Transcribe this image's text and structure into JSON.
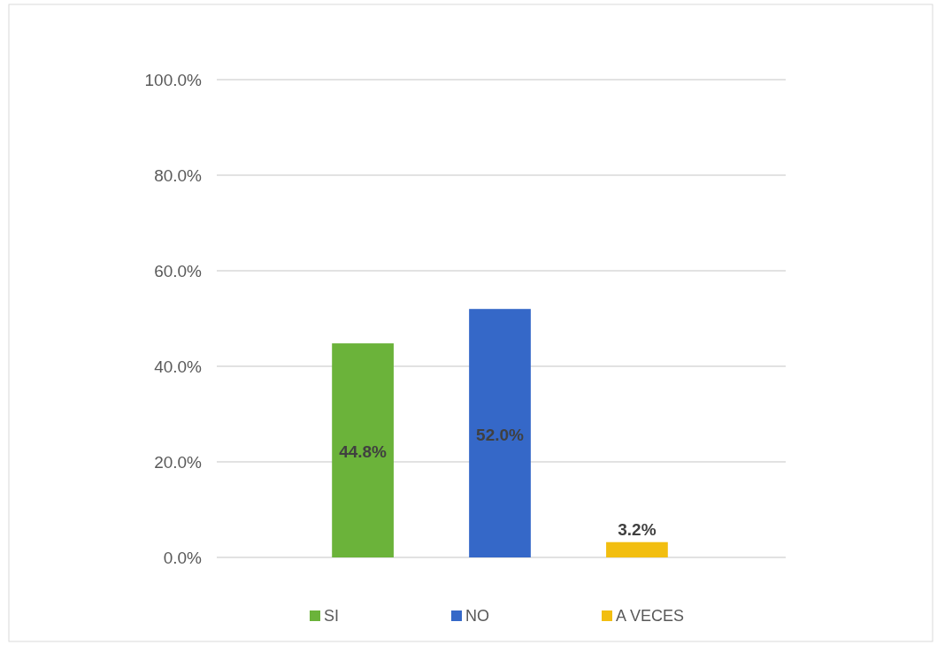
{
  "chart_data": {
    "type": "bar",
    "categories": [
      null,
      null,
      null
    ],
    "series": [
      {
        "name": "SI",
        "color": "#6bb33a",
        "values": [
          44.8,
          null,
          null
        ],
        "value_labels": [
          "44.8%",
          null,
          null
        ]
      },
      {
        "name": "NO",
        "color": "#3568c8",
        "values": [
          null,
          52.0,
          null
        ],
        "value_labels": [
          null,
          "52.0%",
          null
        ]
      },
      {
        "name": "A VECES",
        "color": "#f2be10",
        "values": [
          null,
          null,
          3.2
        ],
        "value_labels": [
          null,
          null,
          "3.2%"
        ]
      }
    ],
    "ylim": [
      0,
      100
    ],
    "yticks": [
      {
        "value": 0,
        "label": "0.0%"
      },
      {
        "value": 20,
        "label": "20.0%"
      },
      {
        "value": 40,
        "label": "40.0%"
      },
      {
        "value": 60,
        "label": "60.0%"
      },
      {
        "value": 80,
        "label": "80.0%"
      },
      {
        "value": 100,
        "label": "100.0%"
      }
    ],
    "grid": "y",
    "legend": "bottom",
    "tick_labels": "y"
  }
}
